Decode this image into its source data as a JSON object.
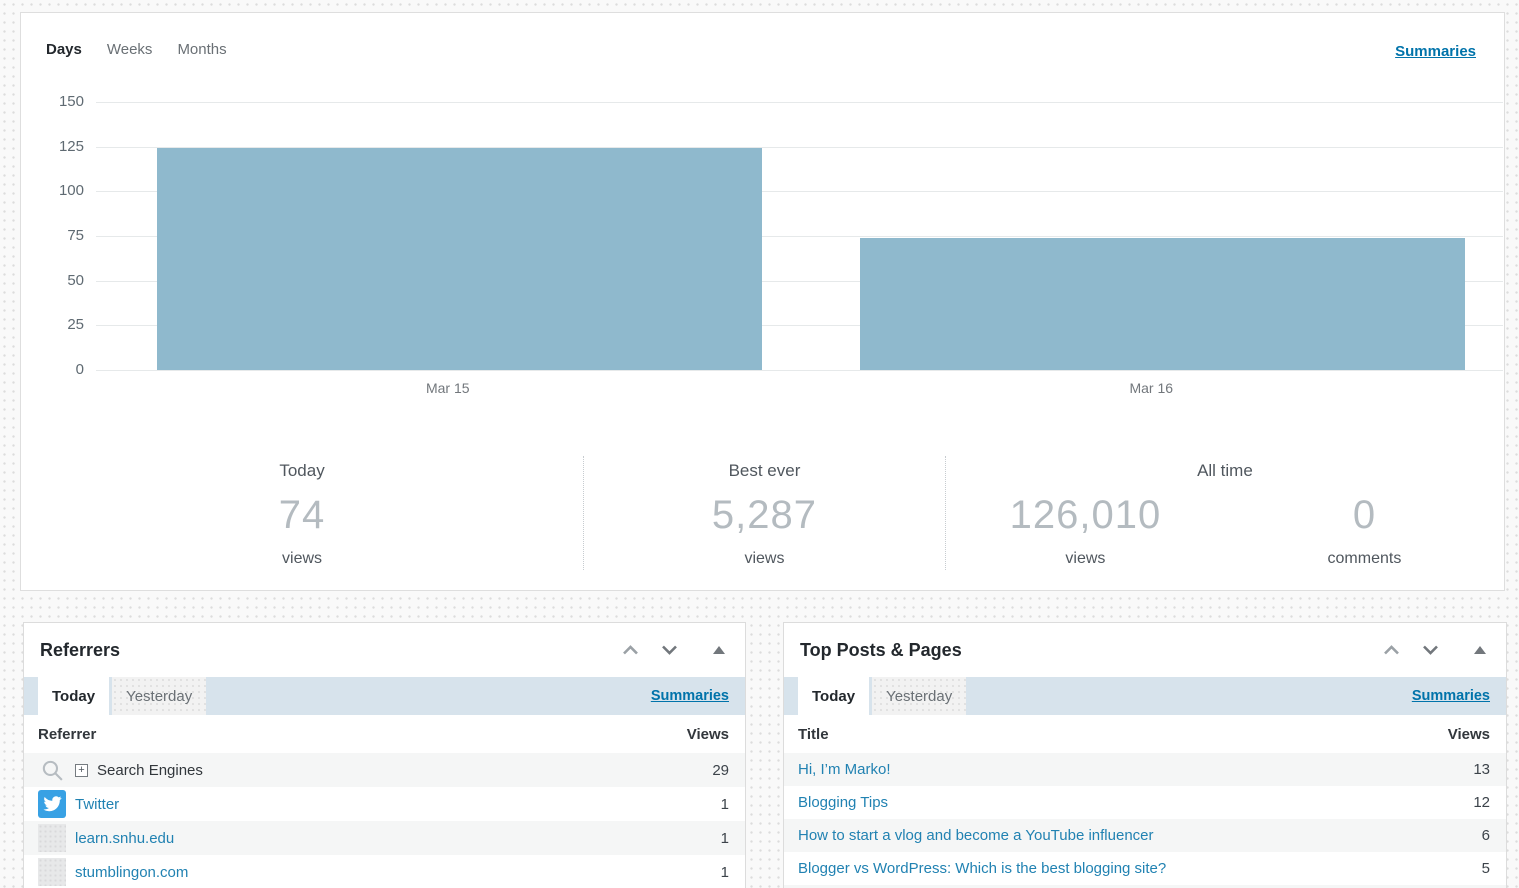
{
  "chart_card": {
    "tabs": [
      "Days",
      "Weeks",
      "Months"
    ],
    "active_tab": "Days",
    "summaries_label": "Summaries"
  },
  "chart_data": {
    "type": "bar",
    "categories": [
      "Mar 15",
      "Mar 16"
    ],
    "values": [
      124,
      74
    ],
    "yticks": [
      "150",
      "125",
      "100",
      "75",
      "50",
      "25",
      "0"
    ],
    "ylim": [
      0,
      150
    ],
    "xlabel": "",
    "ylabel": "",
    "bar_color": "#8fb9cd",
    "grid": "horizontal"
  },
  "stats": {
    "today": {
      "label": "Today",
      "value": "74",
      "unit": "views"
    },
    "best_ever": {
      "label": "Best ever",
      "value": "5,287",
      "unit": "views"
    },
    "all_time": {
      "label": "All time",
      "views": {
        "value": "126,010",
        "unit": "views"
      },
      "comments": {
        "value": "0",
        "unit": "comments"
      }
    }
  },
  "referrers": {
    "title": "Referrers",
    "tabs": [
      "Today",
      "Yesterday"
    ],
    "active_tab": "Today",
    "summaries_label": "Summaries",
    "columns": [
      "Referrer",
      "Views"
    ],
    "rows": [
      {
        "label": "Search Engines",
        "views": "29",
        "icon": "search-icon",
        "expand_glyph": "+",
        "is_link": false
      },
      {
        "label": "Twitter",
        "views": "1",
        "icon": "twitter-icon",
        "is_link": true
      },
      {
        "label": "learn.snhu.edu",
        "views": "1",
        "icon": "placeholder-icon",
        "is_link": true
      },
      {
        "label": "stumblingon.com",
        "views": "1",
        "icon": "placeholder-icon",
        "is_link": true
      }
    ]
  },
  "top_posts": {
    "title": "Top Posts & Pages",
    "tabs": [
      "Today",
      "Yesterday"
    ],
    "active_tab": "Today",
    "summaries_label": "Summaries",
    "columns": [
      "Title",
      "Views"
    ],
    "rows": [
      {
        "label": "Hi, I’m Marko!",
        "views": "13"
      },
      {
        "label": "Blogging Tips",
        "views": "12"
      },
      {
        "label": "How to start a vlog and become a YouTube influencer",
        "views": "6"
      },
      {
        "label": "Blogger vs WordPress: Which is the best blogging site?",
        "views": "5"
      }
    ]
  }
}
